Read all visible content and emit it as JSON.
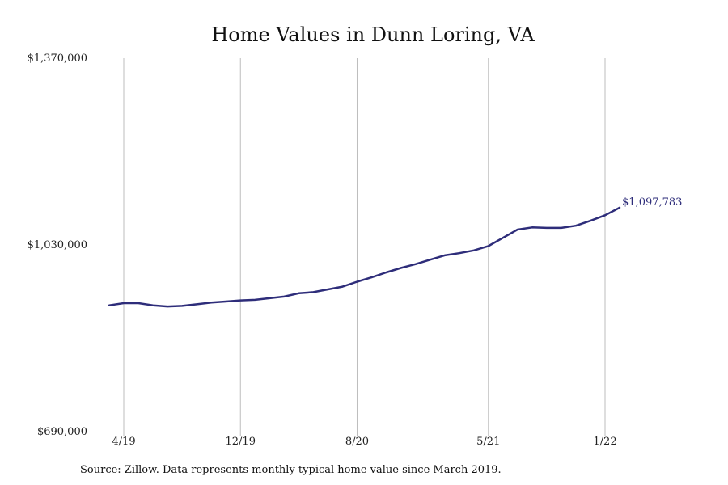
{
  "chart_data": {
    "type": "line",
    "title": "Home Values in Dunn Loring, VA",
    "xlabel": "",
    "ylabel": "",
    "source": "Source: Zillow. Data represents monthly typical home value since March 2019.",
    "ylim": [
      690000,
      1370000
    ],
    "y_ticks": [
      {
        "value": 690000,
        "label": "$690,000"
      },
      {
        "value": 1030000,
        "label": "$1,030,000"
      },
      {
        "value": 1370000,
        "label": "$1,370,000"
      }
    ],
    "x_ticks": [
      {
        "month": "2019-04",
        "label": "4/19"
      },
      {
        "month": "2019-12",
        "label": "12/19"
      },
      {
        "month": "2020-08",
        "label": "8/20"
      },
      {
        "month": "2021-05",
        "label": "5/21"
      },
      {
        "month": "2022-01",
        "label": "1/22"
      }
    ],
    "grid": {
      "vertical": true,
      "horizontal": false
    },
    "series_color": "#2e2d7a",
    "end_label": "$1,097,783",
    "series": [
      {
        "name": "",
        "points": [
          {
            "month": "2019-03",
            "value": 920000
          },
          {
            "month": "2019-04",
            "value": 924000
          },
          {
            "month": "2019-05",
            "value": 924000
          },
          {
            "month": "2019-06",
            "value": 920000
          },
          {
            "month": "2019-07",
            "value": 918000
          },
          {
            "month": "2019-08",
            "value": 919000
          },
          {
            "month": "2019-09",
            "value": 922000
          },
          {
            "month": "2019-10",
            "value": 925000
          },
          {
            "month": "2019-11",
            "value": 927000
          },
          {
            "month": "2019-12",
            "value": 929000
          },
          {
            "month": "2020-01",
            "value": 930000
          },
          {
            "month": "2020-02",
            "value": 933000
          },
          {
            "month": "2020-03",
            "value": 936000
          },
          {
            "month": "2020-04",
            "value": 942000
          },
          {
            "month": "2020-05",
            "value": 944000
          },
          {
            "month": "2020-06",
            "value": 949000
          },
          {
            "month": "2020-07",
            "value": 954000
          },
          {
            "month": "2020-08",
            "value": 963000
          },
          {
            "month": "2020-09",
            "value": 971000
          },
          {
            "month": "2020-10",
            "value": 980000
          },
          {
            "month": "2020-11",
            "value": 988000
          },
          {
            "month": "2020-12",
            "value": 995000
          },
          {
            "month": "2021-01",
            "value": 1003000
          },
          {
            "month": "2021-02",
            "value": 1011000
          },
          {
            "month": "2021-03",
            "value": 1015000
          },
          {
            "month": "2021-04",
            "value": 1020000
          },
          {
            "month": "2021-05",
            "value": 1028000
          },
          {
            "month": "2021-06",
            "value": 1043000
          },
          {
            "month": "2021-07",
            "value": 1058000
          },
          {
            "month": "2021-08",
            "value": 1062000
          },
          {
            "month": "2021-09",
            "value": 1061000
          },
          {
            "month": "2021-10",
            "value": 1061000
          },
          {
            "month": "2021-11",
            "value": 1065000
          },
          {
            "month": "2021-12",
            "value": 1074000
          },
          {
            "month": "2022-01",
            "value": 1084000
          },
          {
            "month": "2022-02",
            "value": 1097783
          }
        ]
      }
    ]
  }
}
